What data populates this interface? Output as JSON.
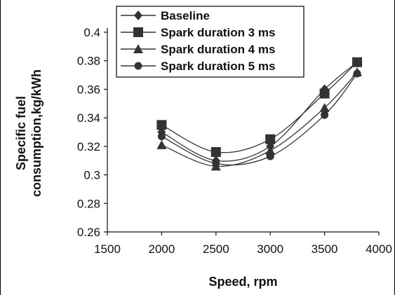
{
  "chart_data": {
    "type": "line",
    "title": "",
    "xlabel": "Speed, rpm",
    "ylabel_lines": [
      "Specific fuel",
      "consumption,kg/kWh"
    ],
    "xlim": [
      1500,
      4000
    ],
    "ylim": [
      0.26,
      0.4
    ],
    "xticks": [
      1500,
      2000,
      2500,
      3000,
      3500,
      4000
    ],
    "yticks": [
      0.26,
      0.28,
      0.3,
      0.32,
      0.34,
      0.36,
      0.38,
      0.4
    ],
    "ytick_labels": [
      "0.26",
      "0.28",
      "0.3",
      "0.32",
      "0.34",
      "0.36",
      "0.38",
      "0.4"
    ],
    "x": [
      2000,
      2500,
      3000,
      3500,
      3800
    ],
    "series": [
      {
        "name": "Baseline",
        "marker": "diamond",
        "values": [
          0.33,
          0.31,
          0.32,
          0.36,
          0.379
        ]
      },
      {
        "name": "Spark duration 3 ms",
        "marker": "square",
        "values": [
          0.335,
          0.316,
          0.325,
          0.357,
          0.379
        ]
      },
      {
        "name": "Spark duration 4 ms",
        "marker": "triangle",
        "values": [
          0.321,
          0.306,
          0.317,
          0.347,
          0.372
        ]
      },
      {
        "name": "Spark duration 5 ms",
        "marker": "circle",
        "values": [
          0.327,
          0.308,
          0.313,
          0.342,
          0.371
        ]
      }
    ],
    "legend_position": "top-left",
    "grid": false,
    "colors": {
      "line": "#333333",
      "marker": "#333333",
      "axis": "#111111"
    }
  }
}
